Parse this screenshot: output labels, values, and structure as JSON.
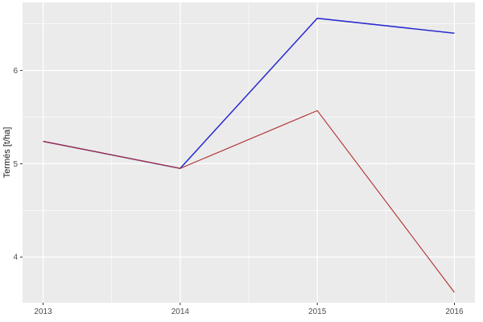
{
  "chart_data": {
    "type": "line",
    "title": "",
    "xlabel": "",
    "ylabel": "Termés [t/ha]",
    "x": [
      2013,
      2014,
      2015,
      2016
    ],
    "series": [
      {
        "id": "blue-line",
        "color": "#2A2AD0",
        "stroke_width": 1.5,
        "values": [
          5.24,
          4.95,
          6.56,
          6.4
        ]
      },
      {
        "id": "red-line",
        "color": "#B03030",
        "stroke_width": 1.1,
        "values": [
          5.24,
          4.95,
          5.57,
          3.62
        ]
      }
    ],
    "x_ticks": [
      {
        "value": 2013,
        "label": "2013"
      },
      {
        "value": 2014,
        "label": "2014"
      },
      {
        "value": 2015,
        "label": "2015"
      },
      {
        "value": 2016,
        "label": "2016"
      }
    ],
    "y_ticks": [
      {
        "value": 4,
        "label": "4"
      },
      {
        "value": 5,
        "label": "5"
      },
      {
        "value": 6,
        "label": "6"
      }
    ],
    "x_minor": [
      2013.5,
      2014.5,
      2015.5
    ],
    "y_minor": [
      4.5,
      5.5,
      6.5
    ],
    "xlim": [
      2012.85,
      2016.15
    ],
    "ylim": [
      3.51,
      6.73
    ],
    "grid": "major+minor",
    "legend": "none",
    "colors": {
      "panel_bg": "#EBEBEB",
      "grid": "#FFFFFF",
      "tick_mark": "#333333",
      "tick_label": "#4D4D4D",
      "axis_title": "#1A1A1A",
      "page_bg": "#FFFFFF"
    }
  }
}
